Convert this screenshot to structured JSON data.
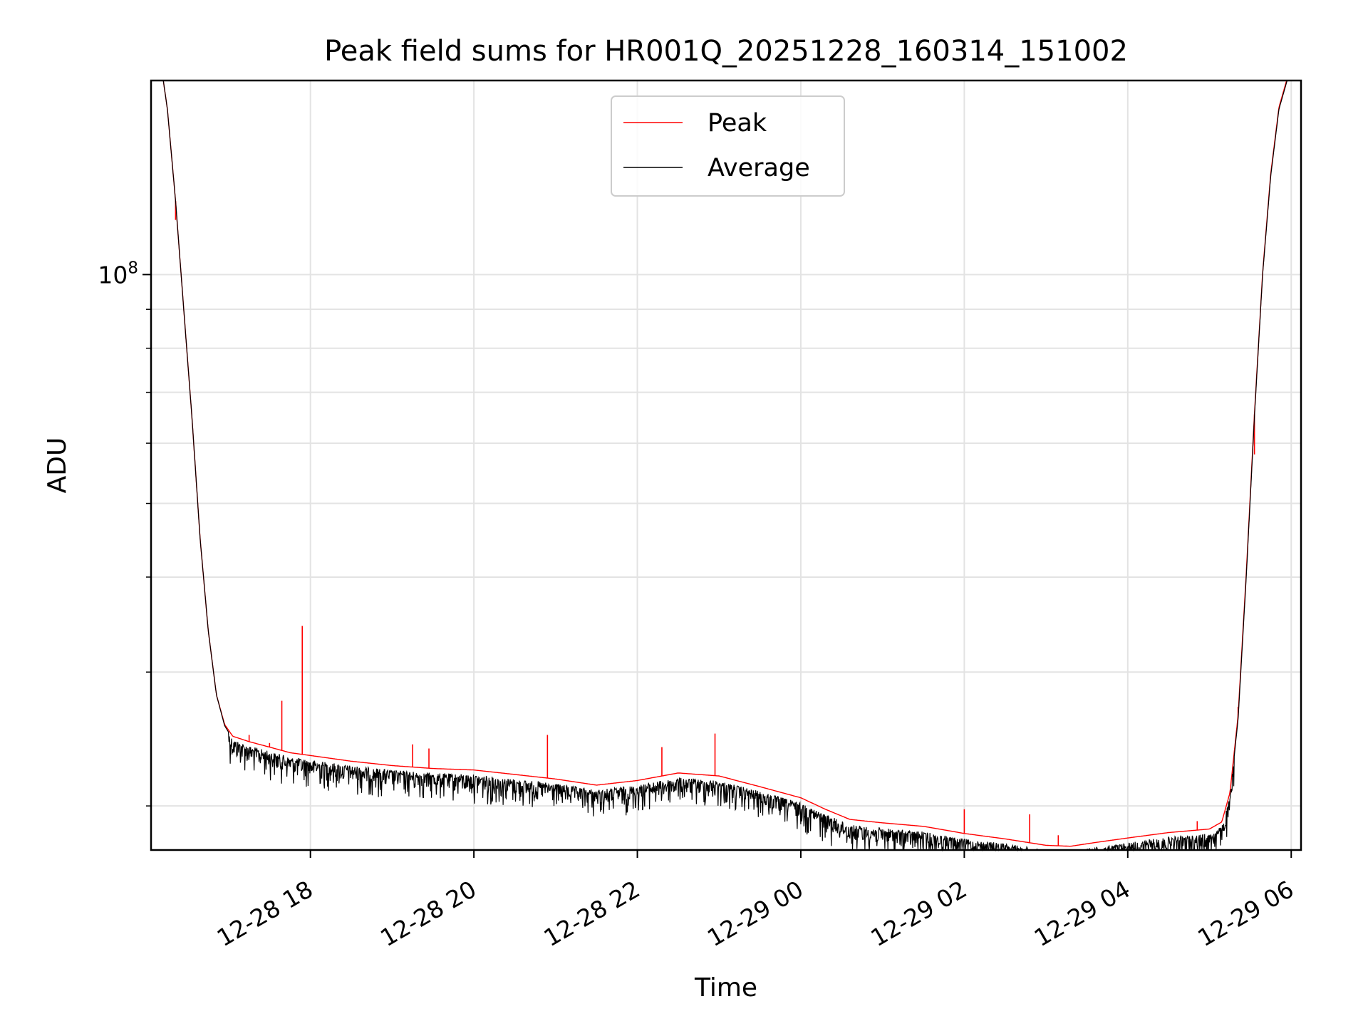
{
  "chart_data": {
    "type": "line",
    "title": "Peak field sums for HR001Q_20251228_160314_151002",
    "xlabel": "Time",
    "ylabel": "ADU",
    "yscale": "log",
    "ylim": [
      17500000,
      180000000
    ],
    "xlim_hours": [
      16.05,
      30.12
    ],
    "x_unit": "hours since 2025-12-28 00:00",
    "x_ticks": [
      {
        "label": "12-28 18",
        "value": 18
      },
      {
        "label": "12-28 20",
        "value": 20
      },
      {
        "label": "12-28 22",
        "value": 22
      },
      {
        "label": "12-29 00",
        "value": 24
      },
      {
        "label": "12-29 02",
        "value": 26
      },
      {
        "label": "12-29 04",
        "value": 28
      },
      {
        "label": "12-29 06",
        "value": 30
      }
    ],
    "y_ticks": [
      {
        "base": "10",
        "exponent": "8",
        "value": 100000000
      }
    ],
    "y_minor_ticks": [
      20000000,
      30000000,
      40000000,
      50000000,
      60000000,
      70000000,
      80000000,
      90000000,
      200000000
    ],
    "grid": true,
    "legend_position": "upper-center",
    "legend": [
      {
        "label": "Peak",
        "color": "#ff0000"
      },
      {
        "label": "Average",
        "color": "#000000"
      }
    ],
    "series": [
      {
        "name": "Average",
        "color": "#000000",
        "x": [
          16.05,
          16.2,
          16.25,
          16.35,
          16.45,
          16.55,
          16.65,
          16.75,
          16.85,
          16.95,
          17.05,
          17.25,
          17.5,
          17.75,
          18.0,
          18.5,
          19.0,
          19.5,
          20.0,
          20.5,
          21.0,
          21.5,
          22.0,
          22.5,
          23.0,
          23.5,
          24.0,
          24.3,
          24.6,
          25.0,
          25.5,
          26.0,
          26.5,
          27.0,
          27.3,
          27.6,
          28.0,
          28.5,
          29.0,
          29.15,
          29.25,
          29.35,
          29.45,
          29.55,
          29.65,
          29.75,
          29.85,
          29.95,
          30.05
        ],
        "y": [
          182000000,
          180000000,
          165000000,
          125000000,
          90000000,
          65000000,
          45000000,
          34000000,
          28000000,
          25500000,
          24500000,
          24000000,
          23600000,
          23200000,
          23000000,
          22600000,
          22300000,
          22100000,
          22000000,
          21700000,
          21400000,
          21000000,
          21300000,
          21800000,
          21600000,
          20900000,
          20200000,
          19500000,
          18900000,
          18700000,
          18500000,
          18100000,
          17850000,
          17500000,
          17450000,
          17650000,
          17900000,
          18200000,
          18400000,
          18800000,
          20500000,
          26000000,
          40000000,
          65000000,
          100000000,
          135000000,
          165000000,
          180000000,
          182000000
        ]
      },
      {
        "name": "Peak",
        "color": "#ff0000",
        "x": [
          16.05,
          16.2,
          16.25,
          16.35,
          16.45,
          16.55,
          16.65,
          16.75,
          16.85,
          16.95,
          17.05,
          17.25,
          17.5,
          17.75,
          18.0,
          18.5,
          19.0,
          19.5,
          20.0,
          20.5,
          21.0,
          21.5,
          22.0,
          22.5,
          23.0,
          23.5,
          24.0,
          24.3,
          24.6,
          25.0,
          25.5,
          26.0,
          26.5,
          27.0,
          27.3,
          27.6,
          28.0,
          28.5,
          29.0,
          29.15,
          29.25,
          29.35,
          29.45,
          29.55,
          29.65,
          29.75,
          29.85,
          29.95,
          30.05
        ],
        "y": [
          182000000,
          180000000,
          165000000,
          125000000,
          90000000,
          65000000,
          45000000,
          34000000,
          28000000,
          25600000,
          24700000,
          24300000,
          23900000,
          23500000,
          23300000,
          22900000,
          22600000,
          22400000,
          22300000,
          22000000,
          21700000,
          21300000,
          21600000,
          22100000,
          21900000,
          21200000,
          20500000,
          19800000,
          19200000,
          19000000,
          18800000,
          18400000,
          18100000,
          17750000,
          17700000,
          17900000,
          18150000,
          18450000,
          18650000,
          19050000,
          20800000,
          26300000,
          40500000,
          65500000,
          100500000,
          136000000,
          166000000,
          181000000,
          182000000
        ]
      }
    ],
    "peak_spikes": [
      {
        "x": 16.35,
        "y": 118000000
      },
      {
        "x": 17.25,
        "y": 24800000
      },
      {
        "x": 17.5,
        "y": 24200000
      },
      {
        "x": 17.65,
        "y": 27500000
      },
      {
        "x": 17.9,
        "y": 34500000
      },
      {
        "x": 19.25,
        "y": 24100000
      },
      {
        "x": 19.45,
        "y": 23800000
      },
      {
        "x": 20.9,
        "y": 24800000
      },
      {
        "x": 22.3,
        "y": 23900000
      },
      {
        "x": 22.95,
        "y": 24900000
      },
      {
        "x": 26.0,
        "y": 19800000
      },
      {
        "x": 26.8,
        "y": 19500000
      },
      {
        "x": 27.15,
        "y": 18300000
      },
      {
        "x": 28.85,
        "y": 19100000
      },
      {
        "x": 29.35,
        "y": 27000000
      },
      {
        "x": 29.55,
        "y": 58000000
      }
    ]
  }
}
